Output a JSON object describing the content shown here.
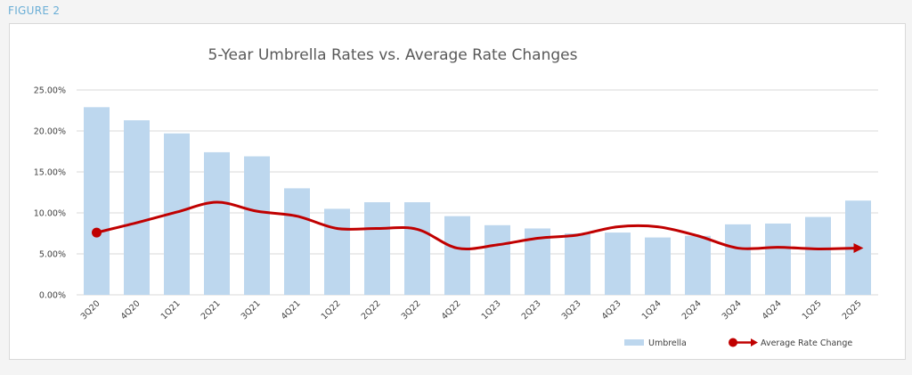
{
  "figure_label": "FIGURE 2",
  "colors": {
    "bar": "#bdd7ee",
    "line": "#c00000",
    "grid": "#d9d9d9",
    "figure_label": "#6aaed6"
  },
  "chart_data": {
    "type": "bar",
    "title": "5-Year Umbrella Rates vs. Average Rate Changes",
    "xlabel": "",
    "ylabel": "",
    "ylim": [
      0,
      25
    ],
    "yticks": [
      "0.00%",
      "5.00%",
      "10.00%",
      "15.00%",
      "20.00%",
      "25.00%"
    ],
    "grid": true,
    "legend_position": "bottom-right",
    "categories": [
      "3Q20",
      "4Q20",
      "1Q21",
      "2Q21",
      "3Q21",
      "4Q21",
      "1Q22",
      "2Q22",
      "3Q22",
      "4Q22",
      "1Q23",
      "2Q23",
      "3Q23",
      "4Q23",
      "1Q24",
      "2Q24",
      "3Q24",
      "4Q24",
      "1Q25",
      "2Q25"
    ],
    "series": [
      {
        "name": "Umbrella",
        "type": "bar",
        "values": [
          22.9,
          21.3,
          19.7,
          17.4,
          16.9,
          13.0,
          10.5,
          11.3,
          11.3,
          9.6,
          8.5,
          8.1,
          7.5,
          7.6,
          7.0,
          7.2,
          8.6,
          8.7,
          9.5,
          11.5
        ]
      },
      {
        "name": "Average Rate Change",
        "type": "line",
        "smooth": true,
        "values": [
          7.6,
          8.8,
          10.1,
          11.3,
          10.2,
          9.6,
          8.1,
          8.1,
          8.0,
          5.7,
          6.1,
          6.9,
          7.3,
          8.3,
          8.3,
          7.2,
          5.7,
          5.8,
          5.6,
          5.7
        ]
      }
    ]
  }
}
